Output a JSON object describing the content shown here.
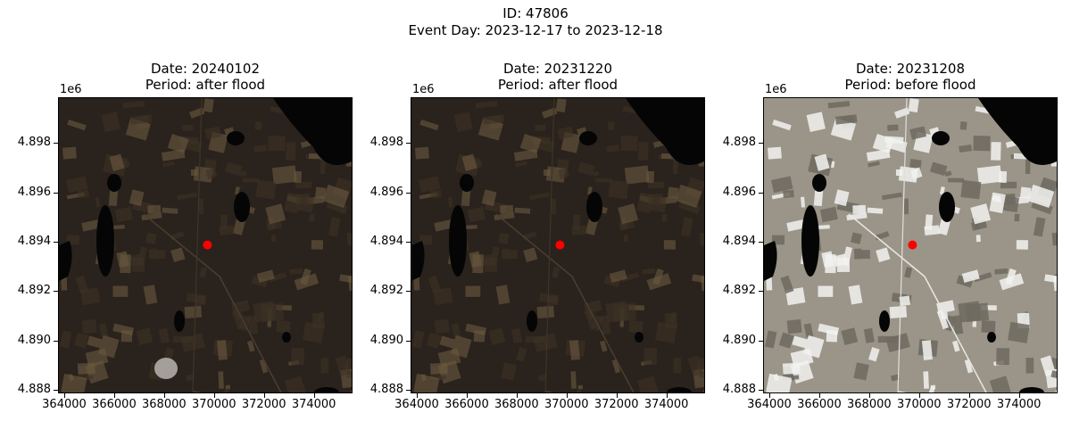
{
  "figure": {
    "id_line": "ID: 47806",
    "event_line": "Event Day: 2023-12-17 to 2023-12-18"
  },
  "axes": {
    "y_offset_label": "1e6",
    "y_ticks": [
      "4.898",
      "4.896",
      "4.894",
      "4.892",
      "4.890",
      "4.888"
    ],
    "x_ticks": [
      "364000",
      "366000",
      "368000",
      "370000",
      "372000",
      "374000"
    ]
  },
  "panels": [
    {
      "date": "Date: 20240102",
      "period": "Period: after flood",
      "scene": "dark",
      "cloud": true
    },
    {
      "date": "Date: 20231220",
      "period": "Period: after flood",
      "scene": "dark",
      "cloud": false
    },
    {
      "date": "Date: 20231208",
      "period": "Period: before flood",
      "scene": "snow",
      "cloud": false
    }
  ],
  "marker": {
    "color": "#ff0000",
    "x": 369700,
    "y": 4.8939
  },
  "colors": {
    "dark_ground": "#2a221c",
    "dark_patch": "#6b5a40",
    "snow_ground": "#9a9588",
    "snow_patch": "#f2f2f0",
    "water": "#050505"
  }
}
